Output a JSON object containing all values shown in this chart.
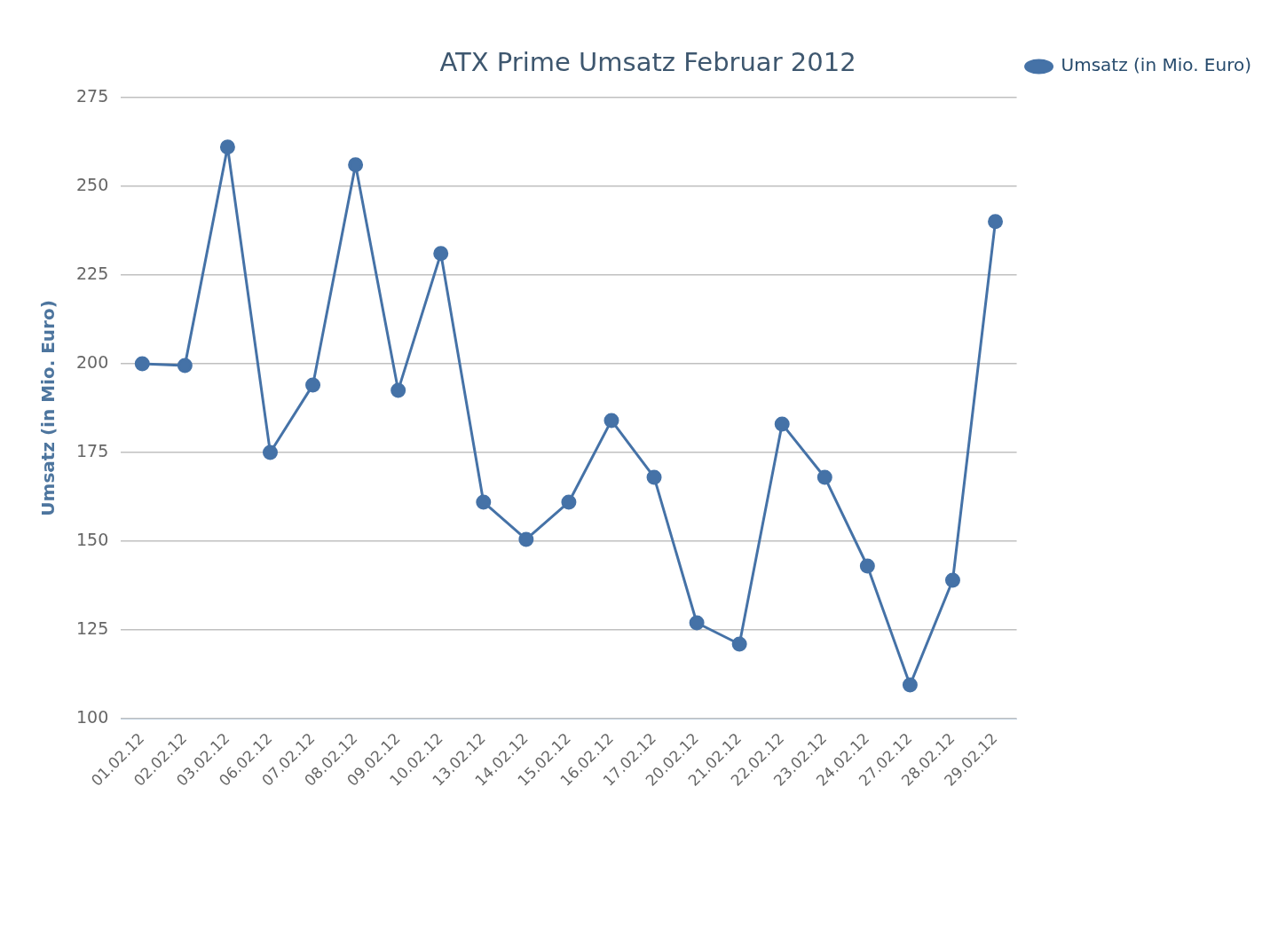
{
  "chart_data": {
    "type": "line",
    "title": "ATX Prime Umsatz Februar 2012",
    "ylabel": "Umsatz (in Mio. Euro)",
    "categories": [
      "01.02.12",
      "02.02.12",
      "03.02.12",
      "06.02.12",
      "07.02.12",
      "08.02.12",
      "09.02.12",
      "10.02.12",
      "13.02.12",
      "14.02.12",
      "15.02.12",
      "16.02.12",
      "17.02.12",
      "20.02.12",
      "21.02.12",
      "22.02.12",
      "23.02.12",
      "24.02.12",
      "27.02.12",
      "28.02.12",
      "29.02.12"
    ],
    "series": [
      {
        "name": "Umsatz (in Mio. Euro)",
        "color": "#4572a7",
        "values": [
          200,
          199.5,
          261,
          175,
          194,
          256,
          192.5,
          231,
          161,
          150.5,
          161,
          184,
          168,
          127,
          121,
          183,
          168,
          143,
          109.5,
          139,
          240
        ]
      }
    ],
    "ylim": [
      100,
      275
    ],
    "yticks": [
      100,
      125,
      150,
      175,
      200,
      225,
      250,
      275
    ],
    "grid": "y",
    "legend": "right",
    "marker": "circle",
    "line_style": "solid"
  }
}
